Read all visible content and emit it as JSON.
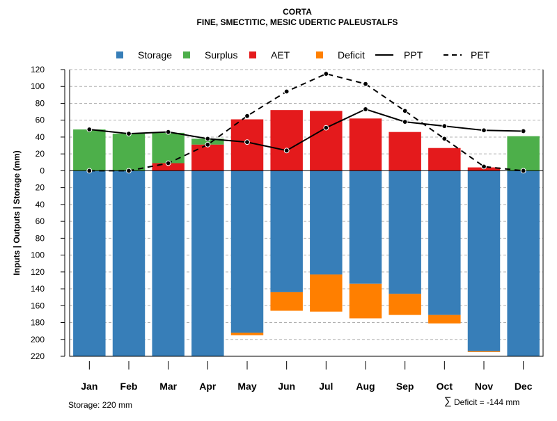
{
  "chart_data": {
    "type": "bar",
    "title": "CORTA",
    "subtitle": "FINE, SMECTITIC, MESIC UDERTIC PALEUSTALFS",
    "ylabel": "Inputs | Outputs | Storage     (mm)",
    "ylim": [
      -220,
      120
    ],
    "yticks": [
      120,
      100,
      80,
      60,
      40,
      20,
      0,
      -20,
      -40,
      -60,
      -80,
      -100,
      -120,
      -140,
      -160,
      -180,
      -200,
      -220
    ],
    "ytick_labels": [
      "120",
      "100",
      "80",
      "60",
      "40",
      "20",
      "0",
      "20",
      "40",
      "60",
      "80",
      "100",
      "120",
      "140",
      "160",
      "180",
      "200",
      "220"
    ],
    "grid": true,
    "categories": [
      "Jan",
      "Feb",
      "Mar",
      "Apr",
      "May",
      "Jun",
      "Jul",
      "Aug",
      "Sep",
      "Oct",
      "Nov",
      "Dec"
    ],
    "legend": {
      "placement": "top",
      "entries": [
        {
          "label": "Storage",
          "kind": "box",
          "color": "#377EB8"
        },
        {
          "label": "Surplus",
          "kind": "box",
          "color": "#4DAF4A"
        },
        {
          "label": "AET",
          "kind": "box",
          "color": "#E41A1C"
        },
        {
          "label": "Deficit",
          "kind": "box",
          "color": "#FF7F00"
        },
        {
          "label": "PPT",
          "kind": "solid-line",
          "color": "#000000"
        },
        {
          "label": "PET",
          "kind": "dashed-line",
          "color": "#000000"
        }
      ]
    },
    "series": [
      {
        "name": "Surplus",
        "color": "#4DAF4A",
        "bottom": [
          0,
          0,
          9,
          31,
          0,
          0,
          0,
          0,
          0,
          0,
          0,
          0
        ],
        "values": [
          49,
          44,
          36,
          7,
          0,
          0,
          0,
          0,
          0,
          0,
          0,
          41
        ]
      },
      {
        "name": "AET",
        "color": "#E41A1C",
        "bottom": [
          0,
          0,
          0,
          0,
          0,
          0,
          0,
          0,
          0,
          0,
          0,
          0
        ],
        "values": [
          0,
          0,
          9,
          31,
          61,
          72,
          71,
          62,
          46,
          27,
          4,
          0
        ]
      },
      {
        "name": "Storage",
        "color": "#377EB8",
        "values": [
          220,
          220,
          220,
          220,
          192,
          144,
          123,
          134,
          146,
          171,
          214,
          220
        ]
      },
      {
        "name": "Deficit",
        "color": "#FF7F00",
        "values": [
          0,
          0,
          0,
          0,
          3,
          22,
          44,
          41,
          25,
          10,
          1,
          0
        ]
      },
      {
        "name": "PPT",
        "color": "#000000",
        "values": [
          49,
          44,
          46,
          38,
          34,
          24,
          51,
          73,
          58,
          53,
          48,
          47
        ]
      },
      {
        "name": "PET",
        "color": "#000000",
        "values": [
          0,
          0,
          9,
          31,
          65,
          94,
          115,
          103,
          71,
          38,
          5,
          0
        ]
      }
    ],
    "footer_left": "Storage: 220 mm",
    "footer_right_symbol": "∑",
    "footer_right": "Deficit = -144 mm"
  }
}
